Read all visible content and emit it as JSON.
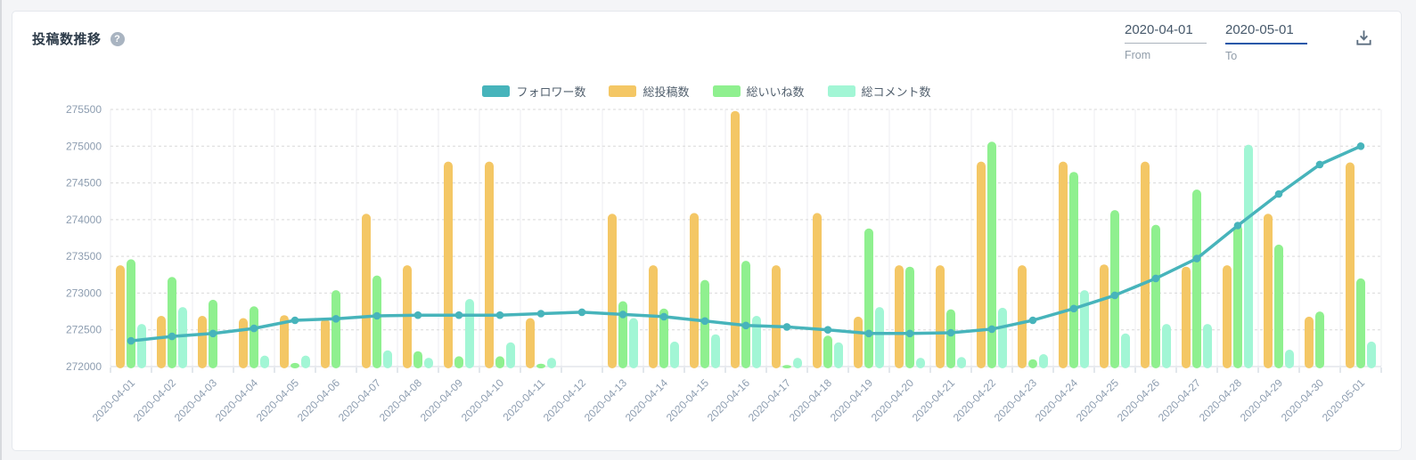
{
  "header": {
    "title": "投稿数推移",
    "help_icon": "?",
    "date_range": {
      "from": {
        "value": "2020-04-01",
        "label": "From"
      },
      "to": {
        "value": "2020-05-01",
        "label": "To"
      }
    }
  },
  "colors": {
    "followers_line": "#47b4bb",
    "posts_bar": "#f4c765",
    "likes_bar": "#8ff08f",
    "comments_bar": "#a2f6d5",
    "to_underline_accent": "#2257a8",
    "axis_text": "#8d9db0"
  },
  "chart_data": {
    "type": "bar",
    "subtype": "grouped-bars-with-line-overlay",
    "title": "投稿数推移",
    "xlabel": "",
    "ylabel": "",
    "ylim": [
      272000,
      275500
    ],
    "yticks": [
      272000,
      272500,
      273000,
      273500,
      274000,
      274500,
      275000,
      275500
    ],
    "grid": {
      "horizontal": "dashed",
      "vertical": "solid"
    },
    "legend_position": "top-center",
    "x": [
      "2020-04-01",
      "2020-04-02",
      "2020-04-03",
      "2020-04-04",
      "2020-04-05",
      "2020-04-06",
      "2020-04-07",
      "2020-04-08",
      "2020-04-09",
      "2020-04-10",
      "2020-04-11",
      "2020-04-12",
      "2020-04-13",
      "2020-04-14",
      "2020-04-15",
      "2020-04-16",
      "2020-04-17",
      "2020-04-18",
      "2020-04-19",
      "2020-04-20",
      "2020-04-21",
      "2020-04-22",
      "2020-04-23",
      "2020-04-24",
      "2020-04-25",
      "2020-04-26",
      "2020-04-27",
      "2020-04-28",
      "2020-04-29",
      "2020-04-30",
      "2020-05-01"
    ],
    "series": [
      {
        "name": "フォロワー数",
        "key": "followers",
        "type": "line",
        "color": "#47b4bb",
        "values": [
          272350,
          272410,
          272450,
          272520,
          272630,
          272650,
          272690,
          272700,
          272700,
          272700,
          272720,
          272740,
          272710,
          272680,
          272620,
          272560,
          272540,
          272500,
          272450,
          272450,
          272460,
          272510,
          272630,
          272790,
          272970,
          273200,
          273470,
          273920,
          274350,
          274750,
          275000
        ]
      },
      {
        "name": "総投稿数",
        "key": "posts",
        "type": "bar",
        "color": "#f4c765",
        "values": [
          273380,
          272690,
          272690,
          272660,
          272700,
          272650,
          274080,
          273380,
          274790,
          274790,
          272660,
          null,
          274080,
          273380,
          274090,
          275480,
          273380,
          274090,
          272680,
          273380,
          273380,
          274790,
          273380,
          274790,
          273390,
          274790,
          273360,
          273380,
          274080,
          272680,
          274780
        ]
      },
      {
        "name": "総いいね数",
        "key": "likes",
        "type": "bar",
        "color": "#8ff08f",
        "values": [
          273460,
          273220,
          272910,
          272820,
          272050,
          273040,
          273240,
          272210,
          272140,
          272140,
          272040,
          null,
          272890,
          272790,
          273180,
          273440,
          272020,
          272420,
          273880,
          273360,
          272780,
          275060,
          272100,
          274650,
          274130,
          273930,
          274410,
          273930,
          273660,
          272750,
          273200
        ]
      },
      {
        "name": "総コメント数",
        "key": "comments",
        "type": "bar",
        "color": "#a2f6d5",
        "values": [
          272580,
          272810,
          null,
          272150,
          272150,
          null,
          272220,
          272120,
          272920,
          272330,
          272120,
          null,
          272660,
          272340,
          272440,
          272690,
          272120,
          272330,
          272810,
          272120,
          272130,
          272800,
          272170,
          273040,
          272450,
          272580,
          272580,
          275020,
          272230,
          null,
          272340
        ]
      }
    ]
  }
}
